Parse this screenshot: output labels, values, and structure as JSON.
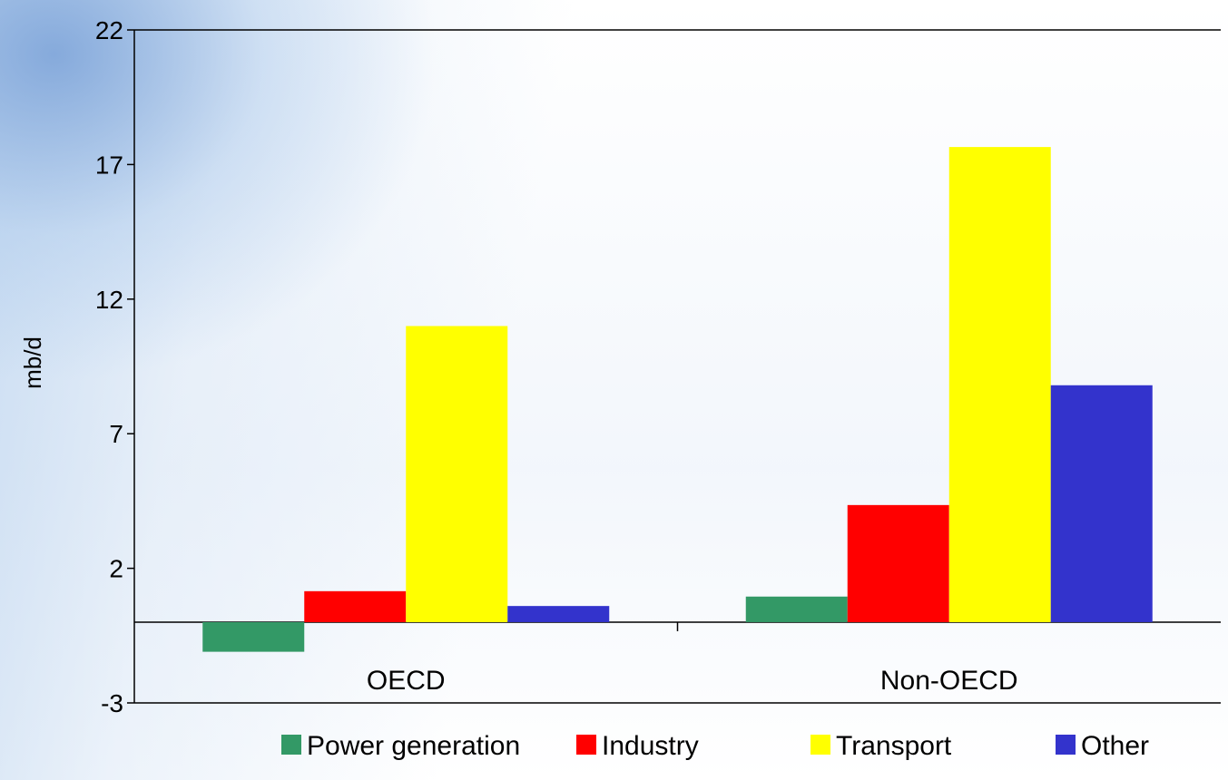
{
  "chart_data": {
    "type": "bar",
    "ylabel": "mb/d",
    "ylim": [
      -3,
      22
    ],
    "yticks": [
      "22",
      "17",
      "12",
      "7",
      "2",
      "-3"
    ],
    "ytick_values": [
      22,
      17,
      12,
      7,
      2,
      -3
    ],
    "categories": [
      "OECD",
      "Non-OECD"
    ],
    "series": [
      {
        "name": "Power generation",
        "color": "#339966",
        "values": [
          -1.1,
          0.95
        ]
      },
      {
        "name": "Industry",
        "color": "#ff0000",
        "values": [
          1.15,
          4.35
        ]
      },
      {
        "name": "Transport",
        "color": "#ffff00",
        "values": [
          11.0,
          17.65
        ]
      },
      {
        "name": "Other",
        "color": "#3333cc",
        "values": [
          0.6,
          8.8
        ]
      }
    ],
    "legend_position": "bottom",
    "grid": false
  }
}
